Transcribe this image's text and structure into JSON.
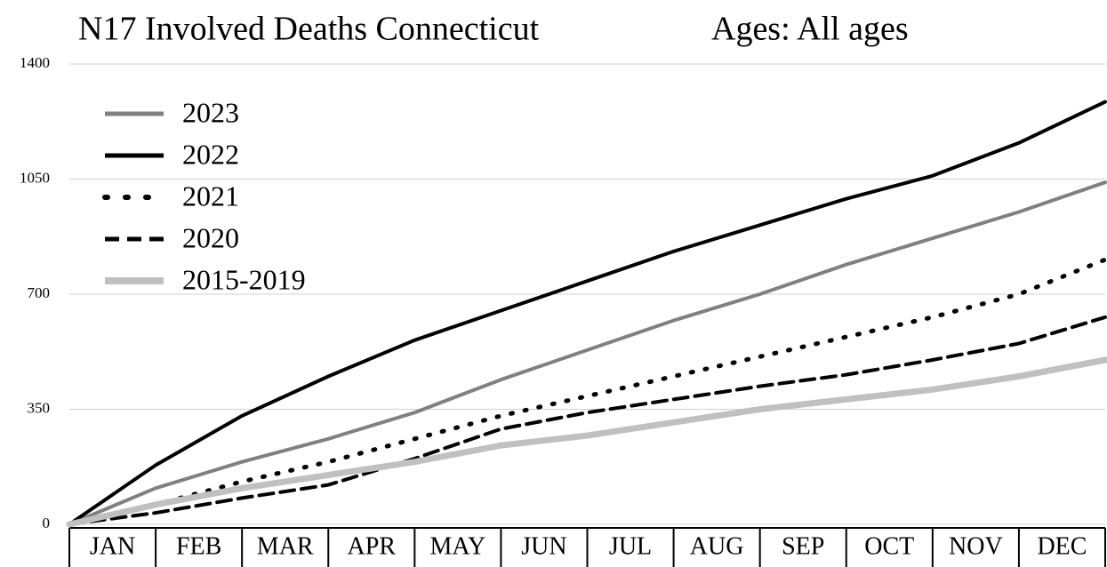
{
  "chart_data": {
    "type": "line",
    "title": "N17 Involved Deaths Connecticut",
    "subtitle": "Ages:  All ages",
    "categories": [
      "JAN",
      "FEB",
      "MAR",
      "APR",
      "MAY",
      "JUN",
      "JUL",
      "AUG",
      "SEP",
      "OCT",
      "NOV",
      "DEC"
    ],
    "ylim": [
      0,
      1400
    ],
    "yticks": [
      0,
      350,
      700,
      1050,
      1400
    ],
    "grid": true,
    "legend": "upper left",
    "series": [
      {
        "name": "2023",
        "color": "#808080",
        "style": "solid",
        "values": [
          110,
          190,
          260,
          340,
          440,
          530,
          620,
          700,
          790,
          870,
          950,
          1040
        ]
      },
      {
        "name": "2022",
        "color": "#000000",
        "style": "solid",
        "values": [
          180,
          330,
          450,
          560,
          650,
          740,
          830,
          910,
          990,
          1060,
          1160,
          1285
        ]
      },
      {
        "name": "2021",
        "color": "#000000",
        "style": "dotted",
        "values": [
          60,
          130,
          190,
          260,
          330,
          390,
          450,
          510,
          570,
          630,
          700,
          805
        ]
      },
      {
        "name": "2020",
        "color": "#000000",
        "style": "dashed",
        "values": [
          35,
          80,
          120,
          200,
          290,
          340,
          380,
          420,
          455,
          500,
          550,
          630
        ]
      },
      {
        "name": "2015-2019",
        "color": "#c0c0c0",
        "style": "solid",
        "values": [
          60,
          110,
          150,
          190,
          240,
          270,
          310,
          350,
          380,
          410,
          450,
          500
        ]
      }
    ]
  }
}
